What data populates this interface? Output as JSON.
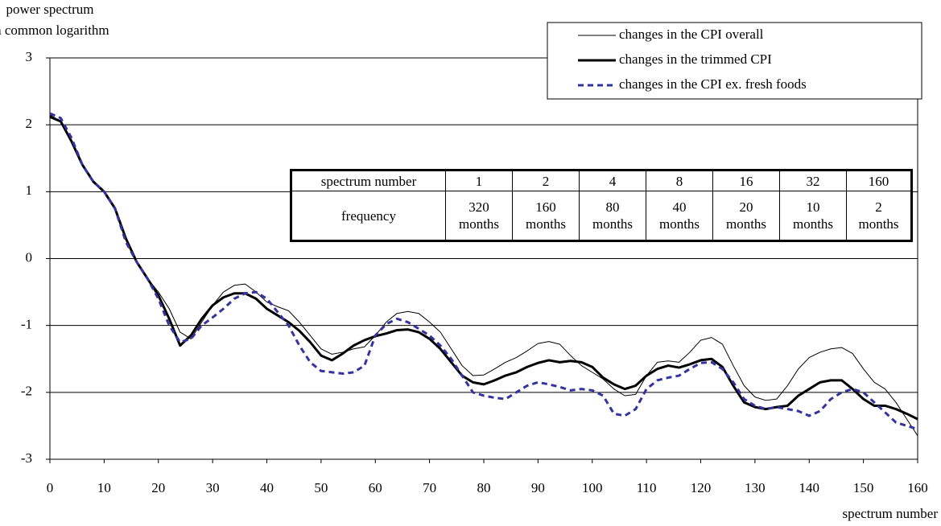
{
  "chart_data": {
    "type": "line",
    "y_label_lines": [
      "power spectrum",
      "in common logarithm"
    ],
    "x_label": "spectrum number",
    "x": [
      0,
      2,
      4,
      6,
      8,
      10,
      12,
      14,
      16,
      18,
      20,
      22,
      24,
      26,
      28,
      30,
      32,
      34,
      36,
      38,
      40,
      42,
      44,
      46,
      48,
      50,
      52,
      54,
      56,
      58,
      60,
      62,
      64,
      66,
      68,
      70,
      72,
      74,
      76,
      78,
      80,
      82,
      84,
      86,
      88,
      90,
      92,
      94,
      96,
      98,
      100,
      102,
      104,
      106,
      108,
      110,
      112,
      114,
      116,
      118,
      120,
      122,
      124,
      126,
      128,
      130,
      132,
      134,
      136,
      138,
      140,
      142,
      144,
      146,
      148,
      150,
      152,
      154,
      156,
      158,
      160
    ],
    "xlim": [
      0,
      160
    ],
    "xticks": [
      0,
      10,
      20,
      30,
      40,
      50,
      60,
      70,
      80,
      90,
      100,
      110,
      120,
      130,
      140,
      150,
      160
    ],
    "ylim": [
      -3,
      3
    ],
    "yticks": [
      -3,
      -2,
      -1,
      0,
      1,
      2,
      3
    ],
    "grid": true,
    "legend": "top-right",
    "series": [
      {
        "name": "changes in the CPI overall",
        "color": "#000000",
        "width": 1,
        "dash": false,
        "values": [
          2.15,
          2.05,
          1.75,
          1.4,
          1.15,
          1.0,
          0.75,
          0.3,
          -0.05,
          -0.3,
          -0.5,
          -0.75,
          -1.1,
          -1.2,
          -0.95,
          -0.7,
          -0.5,
          -0.4,
          -0.38,
          -0.5,
          -0.65,
          -0.72,
          -0.78,
          -0.95,
          -1.15,
          -1.35,
          -1.43,
          -1.4,
          -1.35,
          -1.32,
          -1.15,
          -0.95,
          -0.82,
          -0.79,
          -0.82,
          -0.95,
          -1.1,
          -1.35,
          -1.6,
          -1.75,
          -1.74,
          -1.65,
          -1.55,
          -1.48,
          -1.38,
          -1.27,
          -1.24,
          -1.28,
          -1.45,
          -1.6,
          -1.7,
          -1.8,
          -1.95,
          -2.05,
          -2.03,
          -1.75,
          -1.55,
          -1.53,
          -1.55,
          -1.4,
          -1.22,
          -1.18,
          -1.28,
          -1.6,
          -1.9,
          -2.07,
          -2.12,
          -2.1,
          -1.9,
          -1.65,
          -1.48,
          -1.4,
          -1.35,
          -1.33,
          -1.42,
          -1.65,
          -1.85,
          -1.95,
          -2.15,
          -2.4,
          -2.65
        ]
      },
      {
        "name": "changes in the trimmed CPI",
        "color": "#000000",
        "width": 3,
        "dash": false,
        "values": [
          2.12,
          2.05,
          1.75,
          1.4,
          1.15,
          1.0,
          0.75,
          0.3,
          -0.05,
          -0.3,
          -0.55,
          -0.9,
          -1.3,
          -1.15,
          -0.9,
          -0.7,
          -0.58,
          -0.52,
          -0.52,
          -0.6,
          -0.75,
          -0.85,
          -0.95,
          -1.08,
          -1.25,
          -1.45,
          -1.52,
          -1.42,
          -1.3,
          -1.22,
          -1.16,
          -1.12,
          -1.07,
          -1.06,
          -1.1,
          -1.2,
          -1.35,
          -1.55,
          -1.75,
          -1.85,
          -1.88,
          -1.82,
          -1.75,
          -1.7,
          -1.62,
          -1.56,
          -1.52,
          -1.55,
          -1.53,
          -1.55,
          -1.62,
          -1.78,
          -1.88,
          -1.95,
          -1.9,
          -1.75,
          -1.65,
          -1.6,
          -1.63,
          -1.58,
          -1.52,
          -1.5,
          -1.62,
          -1.9,
          -2.15,
          -2.22,
          -2.25,
          -2.22,
          -2.2,
          -2.05,
          -1.95,
          -1.85,
          -1.82,
          -1.82,
          -1.95,
          -2.1,
          -2.2,
          -2.2,
          -2.25,
          -2.32,
          -2.4
        ]
      },
      {
        "name": "changes in the CPI ex. fresh foods",
        "color": "#3333a0",
        "width": 3,
        "dash": true,
        "values": [
          2.17,
          2.1,
          1.8,
          1.4,
          1.15,
          1.0,
          0.75,
          0.25,
          -0.05,
          -0.3,
          -0.6,
          -1.0,
          -1.25,
          -1.2,
          -1.0,
          -0.88,
          -0.75,
          -0.6,
          -0.52,
          -0.5,
          -0.6,
          -0.8,
          -1.0,
          -1.3,
          -1.55,
          -1.68,
          -1.7,
          -1.72,
          -1.7,
          -1.6,
          -1.15,
          -0.98,
          -0.9,
          -0.95,
          -1.05,
          -1.15,
          -1.3,
          -1.5,
          -1.75,
          -2.0,
          -2.05,
          -2.08,
          -2.1,
          -2.0,
          -1.9,
          -1.85,
          -1.88,
          -1.92,
          -1.97,
          -1.95,
          -1.97,
          -2.05,
          -2.32,
          -2.35,
          -2.25,
          -1.95,
          -1.82,
          -1.78,
          -1.75,
          -1.65,
          -1.56,
          -1.55,
          -1.65,
          -1.85,
          -2.1,
          -2.2,
          -2.25,
          -2.22,
          -2.25,
          -2.28,
          -2.35,
          -2.28,
          -2.1,
          -2.0,
          -1.95,
          -2.0,
          -2.15,
          -2.3,
          -2.45,
          -2.5,
          -2.55
        ]
      }
    ],
    "table": {
      "rows": [
        [
          "spectrum number",
          "1",
          "2",
          "4",
          "8",
          "16",
          "32",
          "160"
        ],
        [
          "frequency",
          "320 months",
          "160 months",
          "80 months",
          "40 months",
          "20 months",
          "10 months",
          "2 months"
        ]
      ]
    }
  }
}
